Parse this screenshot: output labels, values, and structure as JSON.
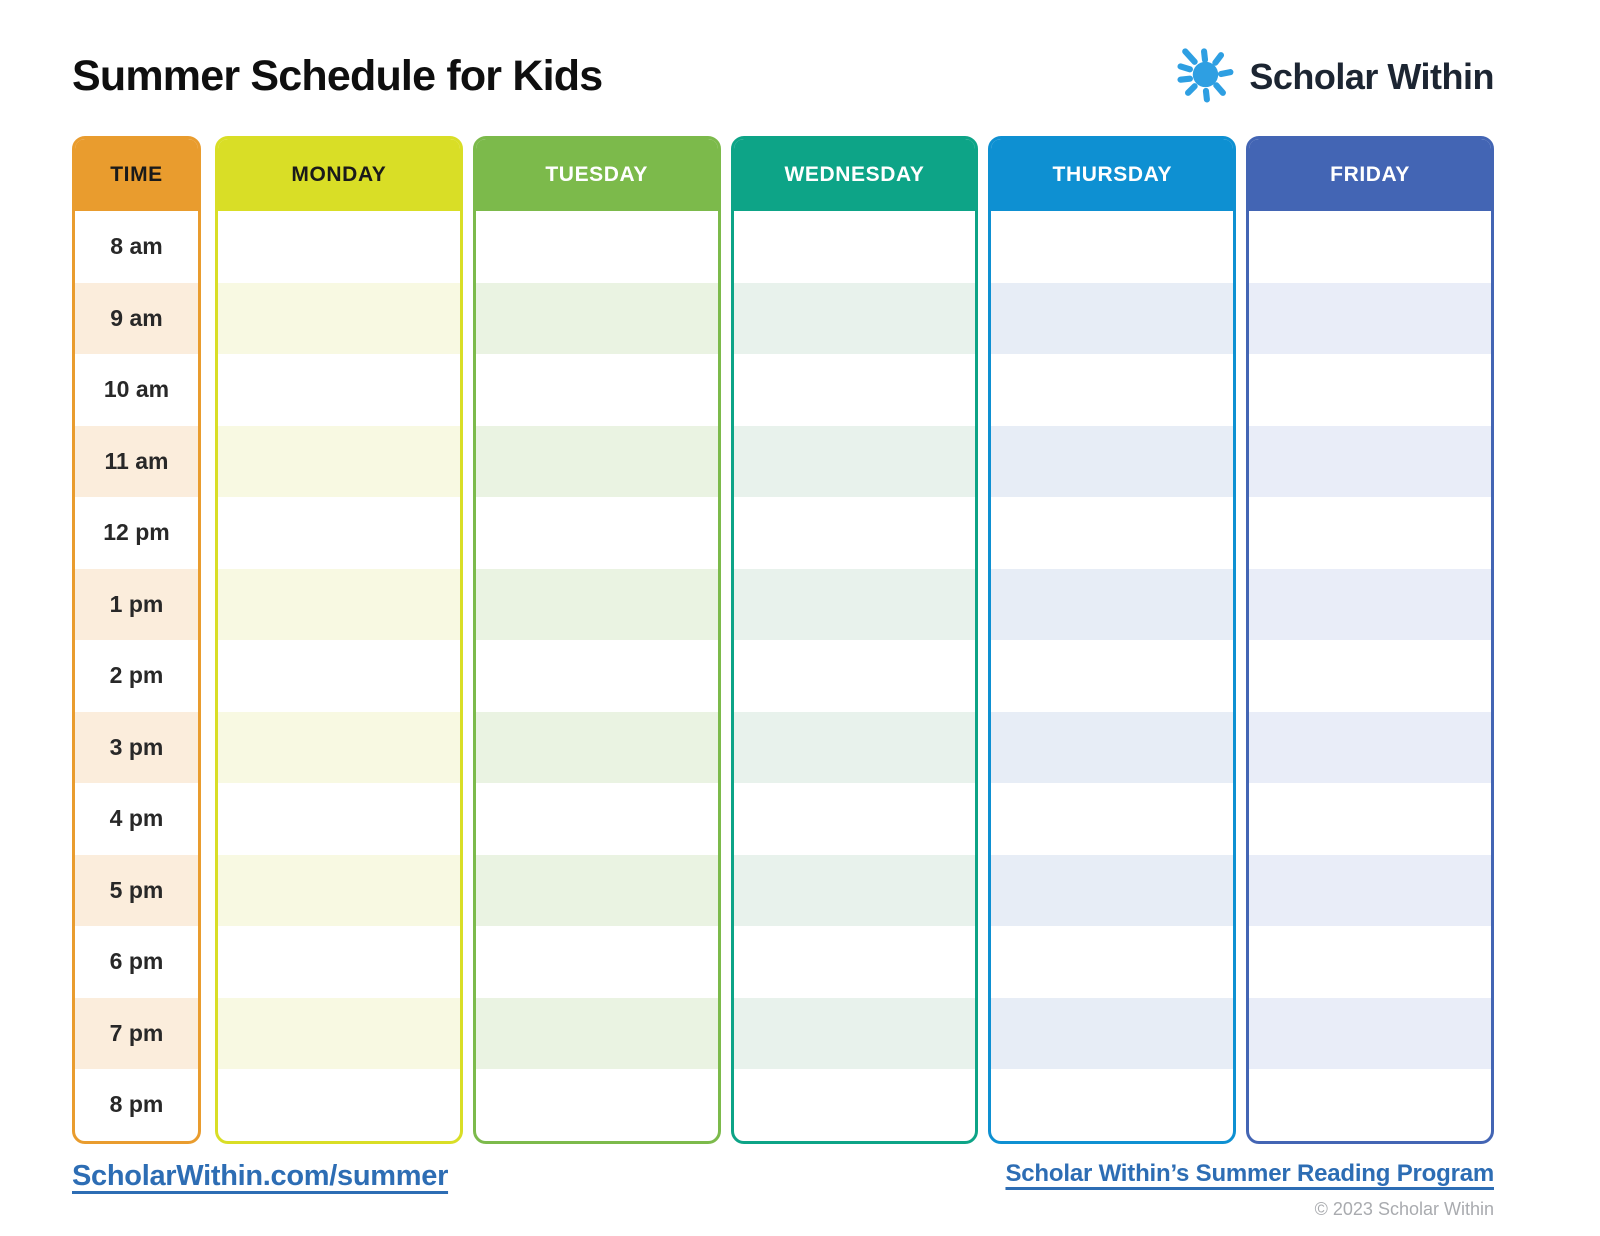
{
  "page": {
    "title": "Summer Schedule for Kids",
    "title_color": "#0F0F0F"
  },
  "brand": {
    "name": "Scholar Within",
    "logo_icon": "sun-icon",
    "sun_color": "#2E9FE2",
    "text_color": "#1C2532"
  },
  "schedule": {
    "time_text_color": "#282828",
    "columns": [
      {
        "id": "time",
        "label": "TIME",
        "header_bg": "#E99C2E",
        "header_text": "#1A1A1A",
        "tint": "#FBEDDC"
      },
      {
        "id": "monday",
        "label": "MONDAY",
        "header_bg": "#D9DE26",
        "header_text": "#1A1A1A",
        "tint": "#F8F9E2"
      },
      {
        "id": "tuesday",
        "label": "TUESDAY",
        "header_bg": "#7CBA4B",
        "header_text": "#FFFFFF",
        "tint": "#EAF3E2"
      },
      {
        "id": "wednesday",
        "label": "WEDNESDAY",
        "header_bg": "#0DA487",
        "header_text": "#FFFFFF",
        "tint": "#E8F2EC"
      },
      {
        "id": "thursday",
        "label": "THURSDAY",
        "header_bg": "#0E90D2",
        "header_text": "#FFFFFF",
        "tint": "#E7EDF6"
      },
      {
        "id": "friday",
        "label": "FRIDAY",
        "header_bg": "#4365B4",
        "header_text": "#FFFFFF",
        "tint": "#E9EDF8"
      }
    ],
    "times": [
      "8 am",
      "9 am",
      "10 am",
      "11 am",
      "12 pm",
      "1 pm",
      "2 pm",
      "3 pm",
      "4 pm",
      "5 pm",
      "6 pm",
      "7 pm",
      "8 pm"
    ]
  },
  "footer": {
    "left_link": "ScholarWithin.com/summer",
    "right_link": "Scholar Within’s Summer Reading Program",
    "copyright": "© 2023 Scholar Within",
    "link_color": "#2D6DB4",
    "copyright_color": "#A9ABAF"
  }
}
